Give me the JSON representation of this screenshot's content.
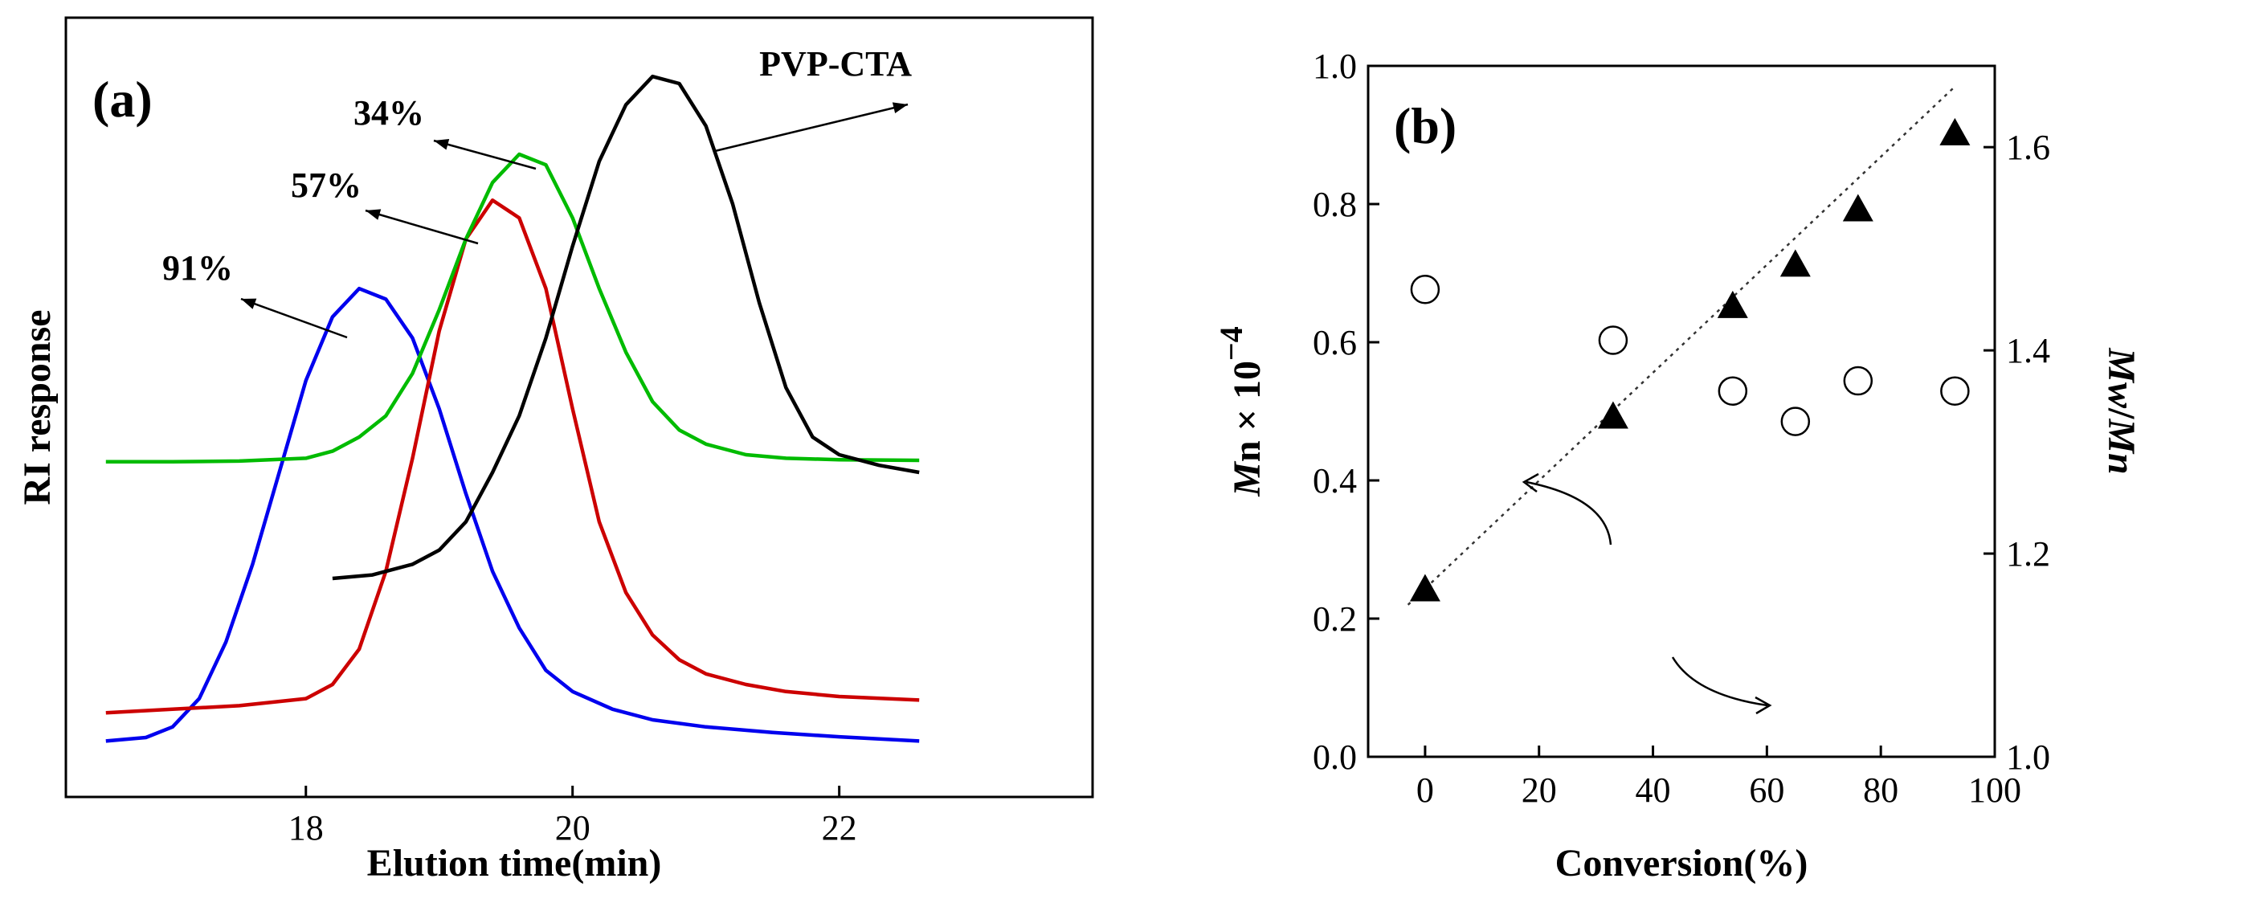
{
  "chart_data": [
    {
      "panel": "(a)",
      "type": "line",
      "xlabel": "Elution time(min)",
      "ylabel": "RI response",
      "xlim": [
        16.2,
        23.9
      ],
      "ylim": [
        0,
        1
      ],
      "x_ticks": [
        18,
        20,
        22
      ],
      "grid": false,
      "series": [
        {
          "color": "#0000ee",
          "label": "91%",
          "x": [
            16.5,
            16.8,
            17.0,
            17.2,
            17.4,
            17.6,
            17.8,
            18.0,
            18.2,
            18.4,
            18.6,
            18.8,
            19.0,
            19.2,
            19.4,
            19.6,
            19.8,
            20.0,
            20.3,
            20.6,
            21.0,
            21.5,
            22.0,
            22.6
          ],
          "y": [
            0.02,
            0.025,
            0.04,
            0.08,
            0.16,
            0.27,
            0.4,
            0.53,
            0.62,
            0.66,
            0.645,
            0.59,
            0.49,
            0.37,
            0.26,
            0.18,
            0.12,
            0.09,
            0.065,
            0.05,
            0.04,
            0.032,
            0.026,
            0.02
          ]
        },
        {
          "color": "#cc0000",
          "label": "57%",
          "x": [
            16.5,
            17.0,
            17.5,
            18.0,
            18.2,
            18.4,
            18.6,
            18.8,
            19.0,
            19.2,
            19.4,
            19.6,
            19.8,
            20.0,
            20.2,
            20.4,
            20.6,
            20.8,
            21.0,
            21.3,
            21.6,
            22.0,
            22.6
          ],
          "y": [
            0.06,
            0.065,
            0.07,
            0.08,
            0.1,
            0.15,
            0.26,
            0.42,
            0.6,
            0.73,
            0.785,
            0.76,
            0.66,
            0.49,
            0.33,
            0.23,
            0.17,
            0.135,
            0.115,
            0.1,
            0.09,
            0.083,
            0.078
          ]
        },
        {
          "color": "#00bb00",
          "label": "34%",
          "x": [
            16.5,
            17.0,
            17.5,
            18.0,
            18.2,
            18.4,
            18.6,
            18.8,
            19.0,
            19.2,
            19.4,
            19.6,
            19.8,
            20.0,
            20.2,
            20.4,
            20.6,
            20.8,
            21.0,
            21.3,
            21.6,
            22.0,
            22.6
          ],
          "y": [
            0.415,
            0.415,
            0.416,
            0.42,
            0.43,
            0.45,
            0.48,
            0.54,
            0.63,
            0.73,
            0.81,
            0.85,
            0.835,
            0.76,
            0.66,
            0.57,
            0.5,
            0.46,
            0.44,
            0.425,
            0.42,
            0.418,
            0.417
          ]
        },
        {
          "color": "#000000",
          "label": "PVP-CTA",
          "x": [
            18.2,
            18.5,
            18.8,
            19.0,
            19.2,
            19.4,
            19.6,
            19.8,
            20.0,
            20.2,
            20.4,
            20.6,
            20.8,
            21.0,
            21.2,
            21.4,
            21.6,
            21.8,
            22.0,
            22.3,
            22.6
          ],
          "y": [
            0.25,
            0.255,
            0.27,
            0.29,
            0.33,
            0.4,
            0.48,
            0.59,
            0.72,
            0.84,
            0.92,
            0.96,
            0.95,
            0.89,
            0.78,
            0.64,
            0.52,
            0.45,
            0.425,
            0.41,
            0.4
          ]
        }
      ]
    },
    {
      "panel": "(b)",
      "type": "scatter",
      "xlabel": "Conversion(%)",
      "ylabel_left": "Mn × 10−4",
      "ylabel_right": "Mw/Mn",
      "xlim": [
        -10,
        100
      ],
      "ylim_left": [
        0.0,
        1.0
      ],
      "ylim_right": [
        1.0,
        1.68
      ],
      "x_ticks": [
        0,
        20,
        40,
        60,
        80,
        100
      ],
      "y_ticks_left": [
        "0.0",
        "0.2",
        "0.4",
        "0.6",
        "0.8",
        "1.0"
      ],
      "y_ticks_right": [
        "1.0",
        "1.2",
        "1.4",
        "1.6"
      ],
      "grid": false,
      "series": [
        {
          "marker": "filled-triangle",
          "axis": "left",
          "x": [
            0,
            33,
            54,
            65,
            76,
            93
          ],
          "y": [
            0.24,
            0.49,
            0.65,
            0.71,
            0.79,
            0.9
          ]
        },
        {
          "marker": "open-circle",
          "axis": "right",
          "x": [
            0,
            33,
            54,
            65,
            76,
            93
          ],
          "y": [
            1.46,
            1.41,
            1.36,
            1.33,
            1.37,
            1.36
          ]
        }
      ],
      "fit_line": {
        "style": "dotted",
        "x": [
          -3,
          93
        ],
        "y": [
          0.22,
          0.97
        ]
      }
    }
  ]
}
